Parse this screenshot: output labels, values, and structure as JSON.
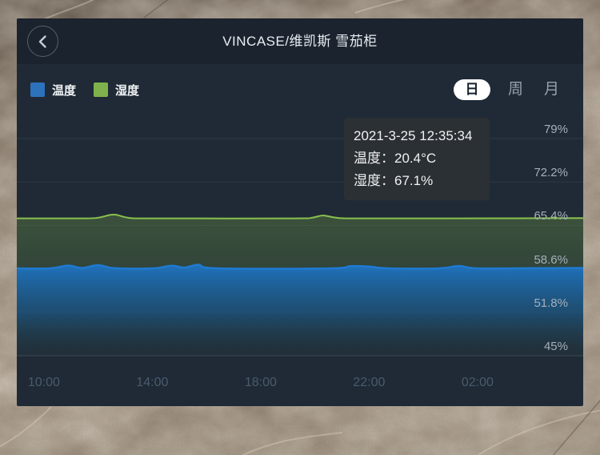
{
  "header": {
    "title": "VINCASE/维凯斯 雪茄柜"
  },
  "legend": {
    "items": [
      {
        "label": "温度",
        "color": "#2d72bd"
      },
      {
        "label": "湿度",
        "color": "#7fb24c"
      }
    ]
  },
  "tabs": {
    "items": [
      {
        "label": "日",
        "active": true
      },
      {
        "label": "周",
        "active": false
      },
      {
        "label": "月",
        "active": false
      }
    ]
  },
  "tooltip": {
    "time": "2021-3-25 12:35:34",
    "temperature": "温度：20.4°C",
    "humidity": "湿度：67.1%"
  },
  "chart_data": {
    "type": "line",
    "title": "",
    "grid": true,
    "legend_position": "top-left",
    "x_axis": {
      "ticks": [
        "10:00",
        "14:00",
        "18:00",
        "22:00",
        "02:00"
      ],
      "tick_hours": [
        10,
        14,
        18,
        22,
        26
      ],
      "start_hour": 9.0,
      "end_hour": 29.9
    },
    "y_axis": {
      "side": "right",
      "ticks": [
        "79%",
        "72.2%",
        "65.4%",
        "58.6%",
        "51.8%",
        "45%"
      ],
      "min": 45,
      "max": 79,
      "unit": "%"
    },
    "temp_axis": {
      "hidden": true,
      "min": 9.5,
      "max": 36.6,
      "unit": "°C"
    },
    "series": [
      {
        "name": "温度",
        "unit": "°C",
        "color": "#1f7ad2",
        "axis": "temp",
        "points": [
          [
            9.0,
            20.4
          ],
          [
            10.2,
            20.4
          ],
          [
            10.9,
            20.75
          ],
          [
            11.4,
            20.45
          ],
          [
            12.0,
            20.8
          ],
          [
            12.6,
            20.42
          ],
          [
            14.0,
            20.4
          ],
          [
            14.7,
            20.72
          ],
          [
            15.2,
            20.5
          ],
          [
            15.7,
            20.85
          ],
          [
            16.4,
            20.4
          ],
          [
            20.6,
            20.4
          ],
          [
            21.3,
            20.68
          ],
          [
            22.0,
            20.62
          ],
          [
            22.7,
            20.4
          ],
          [
            24.6,
            20.4
          ],
          [
            25.3,
            20.7
          ],
          [
            26.0,
            20.4
          ],
          [
            28.0,
            20.42
          ],
          [
            29.9,
            20.45
          ]
        ]
      },
      {
        "name": "湿度",
        "unit": "%",
        "color": "#8abf4d",
        "axis": "humidity",
        "points": [
          [
            9.0,
            66.5
          ],
          [
            11.4,
            66.5
          ],
          [
            12.0,
            66.6
          ],
          [
            12.58,
            67.1
          ],
          [
            13.2,
            66.55
          ],
          [
            14.5,
            66.5
          ],
          [
            19.2,
            66.5
          ],
          [
            19.9,
            66.62
          ],
          [
            20.3,
            66.95
          ],
          [
            20.9,
            66.55
          ],
          [
            22.0,
            66.5
          ],
          [
            25.0,
            66.5
          ],
          [
            27.5,
            66.52
          ],
          [
            29.9,
            66.55
          ]
        ]
      }
    ]
  },
  "colors": {
    "panel_bg": "#1f2a36",
    "header_bg": "#1a232e",
    "tab_active_bg": "#ffffff",
    "tooltip_bg": "rgba(44,48,53,0.93)",
    "y_label": "#a4afbb",
    "x_label": "#4a5a6c"
  }
}
